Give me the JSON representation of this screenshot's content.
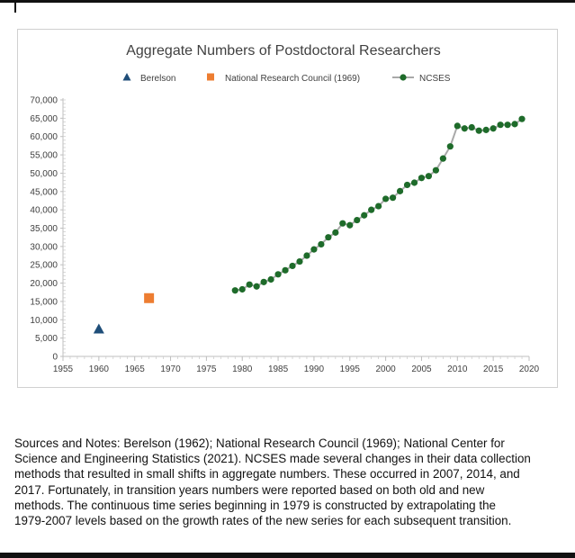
{
  "chart_data": {
    "type": "scatter",
    "title": "Aggregate Numbers of Postdoctoral Researchers",
    "xlabel": "",
    "ylabel": "",
    "xlim": [
      1955,
      2020
    ],
    "ylim": [
      0,
      70000
    ],
    "x_ticks": [
      1955,
      1960,
      1965,
      1970,
      1975,
      1980,
      1985,
      1990,
      1995,
      2000,
      2005,
      2010,
      2015,
      2020
    ],
    "y_ticks": [
      0,
      5000,
      10000,
      15000,
      20000,
      25000,
      30000,
      35000,
      40000,
      45000,
      50000,
      55000,
      60000,
      65000,
      70000
    ],
    "y_tick_labels": [
      "0",
      "5,000",
      "10,000",
      "15,000",
      "20,000",
      "25,000",
      "30,000",
      "35,000",
      "40,000",
      "45,000",
      "50,000",
      "55,000",
      "60,000",
      "65,000",
      "70,000"
    ],
    "grid": false,
    "legend_position": "top",
    "series": [
      {
        "name": "Berelson",
        "marker": "triangle",
        "color": "#1f4e79",
        "x": [
          1960
        ],
        "y": [
          7500
        ]
      },
      {
        "name": "National Research Council (1969)",
        "marker": "square",
        "color": "#ed7d31",
        "x": [
          1967
        ],
        "y": [
          15900
        ]
      },
      {
        "name": "NCSES",
        "marker": "circle-line",
        "color": "#1e6b2a",
        "line_color": "#a9a9a9",
        "x": [
          1979,
          1980,
          1981,
          1982,
          1983,
          1984,
          1985,
          1986,
          1987,
          1988,
          1989,
          1990,
          1991,
          1992,
          1993,
          1994,
          1995,
          1996,
          1997,
          1998,
          1999,
          2000,
          2001,
          2002,
          2003,
          2004,
          2005,
          2006,
          2007,
          2008,
          2009,
          2010,
          2011,
          2012,
          2013,
          2014,
          2015,
          2016,
          2017,
          2018,
          2019
        ],
        "y": [
          18000,
          18300,
          19600,
          19100,
          20300,
          21000,
          22400,
          23500,
          24700,
          25900,
          27500,
          29200,
          30600,
          32500,
          33800,
          36300,
          35800,
          37200,
          38500,
          40000,
          41000,
          43000,
          43300,
          45100,
          46800,
          47400,
          48700,
          49200,
          50800,
          54000,
          57300,
          62900,
          62200,
          62500,
          61600,
          61800,
          62200,
          63200,
          63200,
          63400,
          64800
        ]
      }
    ]
  },
  "notes": {
    "lines": [
      "Sources and Notes:  Berelson (1962); National Research Council (1969); National Center for",
      "Science and Engineering Statistics (2021). NCSES made several changes in their data collection",
      "methods that resulted in small shifts in aggregate numbers.  These occurred in 2007, 2014, and",
      "2017.  Fortunately, in transition years numbers were reported based on both old and new",
      "methods.  The continuous time series beginning in 1979 is constructed by extrapolating the",
      "1979-2007 levels based on the growth rates of the new series for each subsequent transition."
    ]
  }
}
